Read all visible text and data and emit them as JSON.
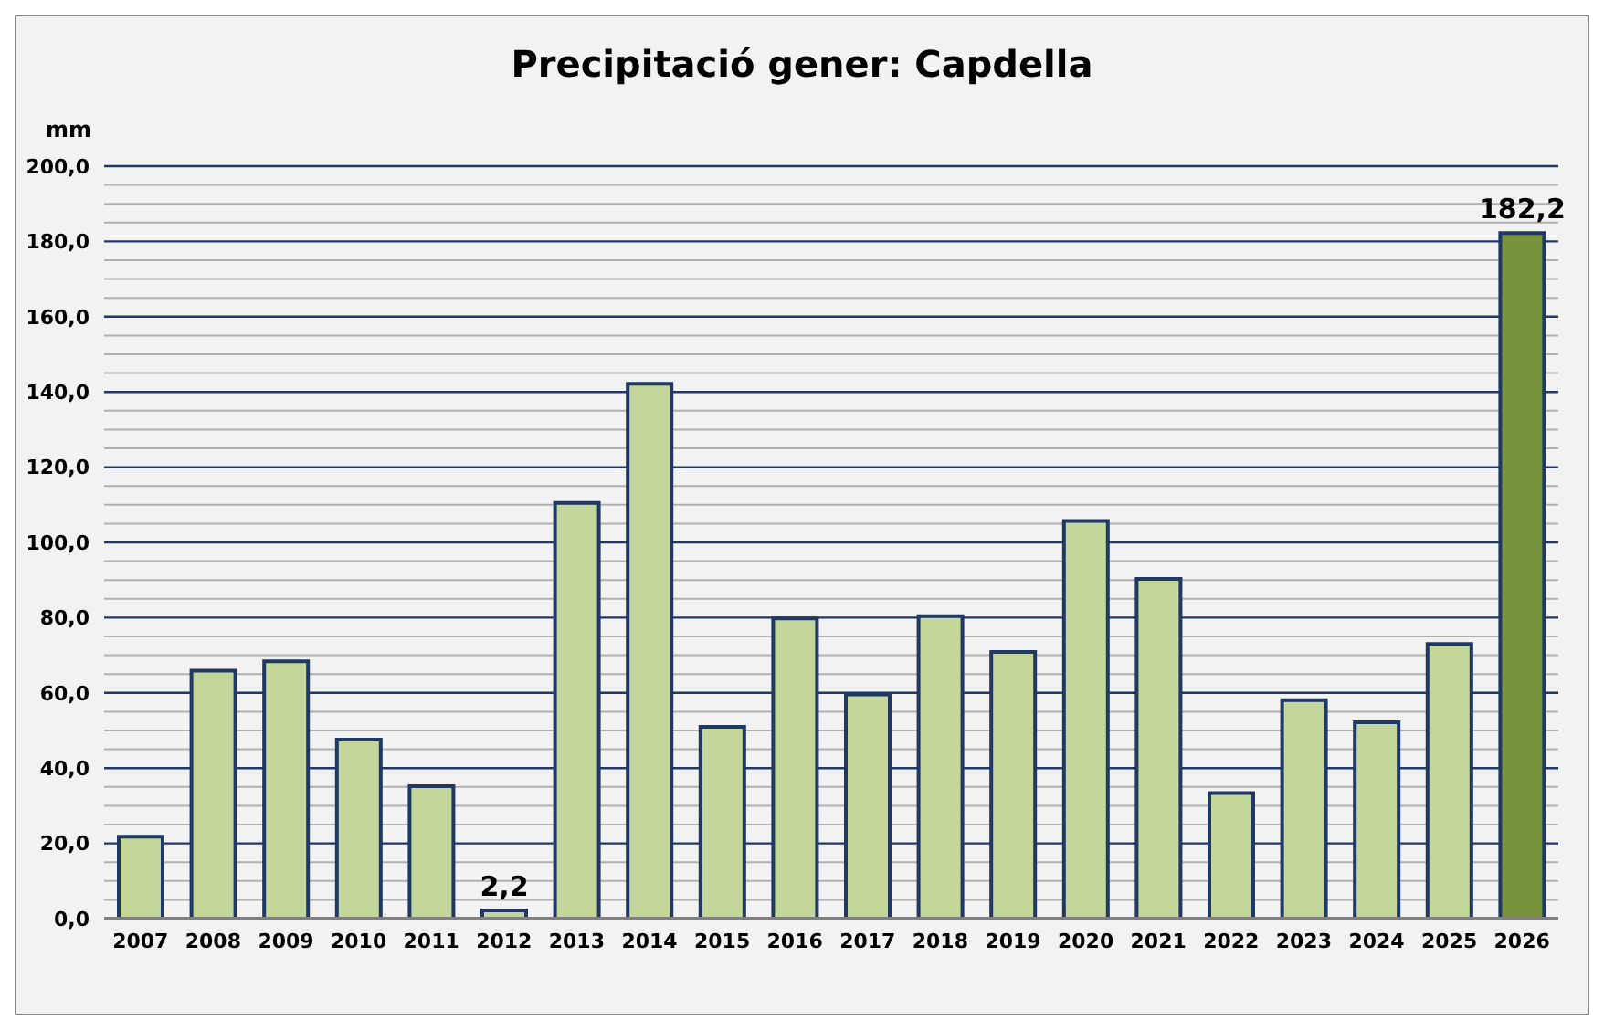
{
  "chart_data": {
    "type": "bar",
    "title": "Precipitació gener: Capdella",
    "ylabel": "mm",
    "categories": [
      "2007",
      "2008",
      "2009",
      "2010",
      "2011",
      "2012",
      "2013",
      "2014",
      "2015",
      "2016",
      "2017",
      "2018",
      "2019",
      "2020",
      "2021",
      "2022",
      "2023",
      "2024",
      "2025",
      "2026"
    ],
    "values": [
      21.8,
      65.9,
      68.4,
      47.6,
      35.2,
      2.2,
      110.5,
      142.2,
      51.0,
      79.8,
      59.6,
      80.4,
      70.9,
      105.7,
      90.3,
      33.4,
      58.1,
      52.2,
      73.0,
      182.2
    ],
    "colors": [
      "#c4d79b",
      "#c4d79b",
      "#c4d79b",
      "#c4d79b",
      "#c4d79b",
      "#c4d79b",
      "#c4d79b",
      "#c4d79b",
      "#c4d79b",
      "#c4d79b",
      "#c4d79b",
      "#c4d79b",
      "#c4d79b",
      "#c4d79b",
      "#c4d79b",
      "#c4d79b",
      "#c4d79b",
      "#c4d79b",
      "#c4d79b",
      "#77933c"
    ],
    "value_labels": [
      null,
      null,
      null,
      null,
      null,
      "2,2",
      null,
      null,
      null,
      null,
      null,
      null,
      null,
      null,
      null,
      null,
      null,
      null,
      null,
      "182,2"
    ],
    "ylim": [
      0,
      200
    ],
    "yticks": [
      {
        "value": 0,
        "label": "0,0"
      },
      {
        "value": 5,
        "label": null
      },
      {
        "value": 10,
        "label": null
      },
      {
        "value": 15,
        "label": null
      },
      {
        "value": 20,
        "label": "20,0"
      },
      {
        "value": 25,
        "label": null
      },
      {
        "value": 30,
        "label": null
      },
      {
        "value": 35,
        "label": null
      },
      {
        "value": 40,
        "label": "40,0"
      },
      {
        "value": 45,
        "label": null
      },
      {
        "value": 50,
        "label": null
      },
      {
        "value": 55,
        "label": null
      },
      {
        "value": 60,
        "label": "60,0"
      },
      {
        "value": 65,
        "label": null
      },
      {
        "value": 70,
        "label": null
      },
      {
        "value": 75,
        "label": null
      },
      {
        "value": 80,
        "label": "80,0"
      },
      {
        "value": 85,
        "label": null
      },
      {
        "value": 90,
        "label": null
      },
      {
        "value": 95,
        "label": null
      },
      {
        "value": 100,
        "label": "100,0"
      },
      {
        "value": 105,
        "label": null
      },
      {
        "value": 110,
        "label": null
      },
      {
        "value": 115,
        "label": null
      },
      {
        "value": 120,
        "label": "120,0"
      },
      {
        "value": 125,
        "label": null
      },
      {
        "value": 130,
        "label": null
      },
      {
        "value": 135,
        "label": null
      },
      {
        "value": 140,
        "label": "140,0"
      },
      {
        "value": 145,
        "label": null
      },
      {
        "value": 150,
        "label": null
      },
      {
        "value": 155,
        "label": null
      },
      {
        "value": 160,
        "label": "160,0"
      },
      {
        "value": 165,
        "label": null
      },
      {
        "value": 170,
        "label": null
      },
      {
        "value": 175,
        "label": null
      },
      {
        "value": 180,
        "label": "180,0"
      },
      {
        "value": 185,
        "label": null
      },
      {
        "value": 190,
        "label": null
      },
      {
        "value": 195,
        "label": null
      },
      {
        "value": 200,
        "label": "200,0"
      }
    ],
    "grid": "y",
    "legend": false
  }
}
